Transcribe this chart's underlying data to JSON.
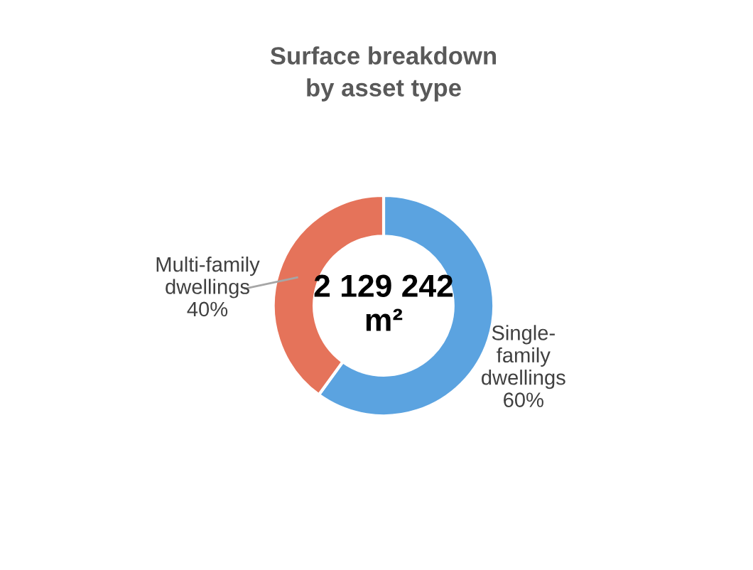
{
  "chart_data": {
    "type": "donut",
    "title": "Surface breakdown\nby asset type",
    "categories": [
      "Single-family dwellings",
      "Multi-family dwellings"
    ],
    "values": [
      60,
      40
    ],
    "value_labels": [
      "60%",
      "40%"
    ],
    "colors": [
      "#5ba3e0",
      "#e5735a"
    ],
    "annotations": [
      "2 129 242\nm²"
    ],
    "legend": false
  }
}
